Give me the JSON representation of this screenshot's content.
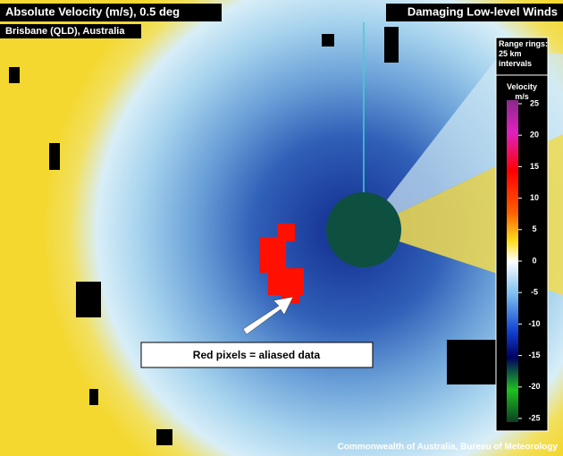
{
  "header": {
    "title": "Absolute Velocity (m/s), 0.5 deg",
    "subtitle": "Brisbane (QLD), Australia",
    "topic": "Damaging Low-level Winds"
  },
  "legend": {
    "range_rings": "Range rings: 25 km intervals",
    "title": "Velocity m/s",
    "ticks": [
      25,
      20,
      15,
      10,
      5,
      0,
      -5,
      -10,
      -15,
      -20,
      -25
    ]
  },
  "annotation": "Red pixels = aliased data",
  "credit": "Commonwealth of Australia, Bureau of Meteorology"
}
